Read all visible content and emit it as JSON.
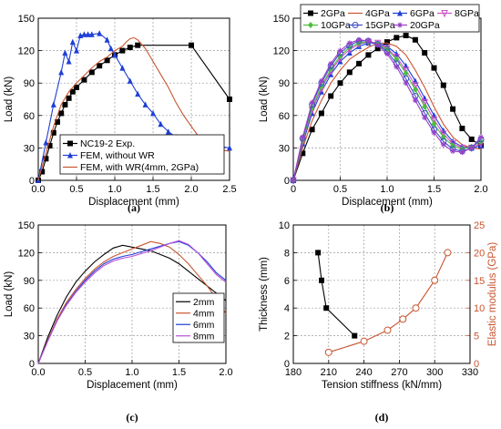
{
  "chart_data": [
    {
      "panel": "(a)",
      "type": "line",
      "xlabel": "Displacement (mm)",
      "ylabel": "Load (kN)",
      "xlim": [
        0,
        2.5
      ],
      "ylim": [
        0,
        150
      ],
      "xticks": [
        "0.0",
        "0.5",
        "1.0",
        "1.5",
        "2.0",
        "2.5"
      ],
      "yticks": [
        "0",
        "30",
        "60",
        "90",
        "120",
        "150"
      ],
      "grid": true,
      "legend_position": "bottom-right",
      "series": [
        {
          "name": "NC19-2 Exp.",
          "color": "#000000",
          "marker": "square",
          "x": [
            0,
            0.05,
            0.1,
            0.15,
            0.2,
            0.25,
            0.3,
            0.35,
            0.4,
            0.45,
            0.5,
            0.6,
            0.7,
            0.8,
            0.9,
            1.0,
            1.1,
            1.2,
            1.3,
            2.0,
            2.5
          ],
          "y": [
            0,
            8,
            20,
            32,
            44,
            54,
            62,
            70,
            76,
            82,
            86,
            93,
            100,
            106,
            111,
            116,
            120,
            123,
            125,
            125,
            75
          ]
        },
        {
          "name": "FEM, without WR",
          "color": "#1f3fd6",
          "marker": "triangle",
          "x": [
            0,
            0.1,
            0.2,
            0.3,
            0.35,
            0.4,
            0.45,
            0.5,
            0.55,
            0.6,
            0.65,
            0.7,
            0.8,
            0.9,
            0.95,
            1.0,
            1.1,
            1.2,
            1.3,
            1.4,
            1.5,
            1.6,
            1.7,
            1.8,
            1.9,
            2.0,
            2.1,
            2.2,
            2.3,
            2.4,
            2.5
          ],
          "y": [
            0,
            35,
            70,
            100,
            118,
            110,
            128,
            120,
            134,
            135,
            135,
            135,
            136,
            130,
            122,
            116,
            104,
            92,
            80,
            70,
            62,
            52,
            45,
            40,
            38,
            35,
            33,
            33,
            32,
            31,
            30
          ]
        },
        {
          "name": "FEM, with WR(4mm, 2GPa)",
          "color": "#c8552f",
          "marker": "none",
          "x": [
            0,
            0.1,
            0.2,
            0.3,
            0.4,
            0.5,
            0.6,
            0.7,
            0.8,
            0.9,
            1.0,
            1.1,
            1.15,
            1.2,
            1.25,
            1.3,
            1.4,
            1.5,
            1.6,
            1.7,
            1.8,
            1.9,
            2.0,
            2.1,
            2.2,
            2.3,
            2.4,
            2.5
          ],
          "y": [
            0,
            25,
            50,
            70,
            82,
            90,
            97,
            104,
            110,
            114,
            120,
            124,
            128,
            131,
            132,
            130,
            122,
            110,
            98,
            86,
            72,
            60,
            50,
            40,
            34,
            30,
            28,
            27
          ]
        }
      ]
    },
    {
      "panel": "(b)",
      "type": "line",
      "xlabel": "Displacement (mm)",
      "ylabel": "Load (kN)",
      "xlim": [
        0,
        2.0
      ],
      "ylim": [
        0,
        150
      ],
      "xticks": [
        "0",
        "0.5",
        "1.0",
        "1.5",
        "2.0"
      ],
      "yticks": [
        "0",
        "30",
        "60",
        "90",
        "120",
        "150"
      ],
      "grid": true,
      "legend_position": "top",
      "series": [
        {
          "name": "2GPa",
          "color": "#000000",
          "marker": "square",
          "x": [
            0,
            0.1,
            0.2,
            0.3,
            0.4,
            0.5,
            0.6,
            0.7,
            0.8,
            0.9,
            1.0,
            1.1,
            1.2,
            1.3,
            1.4,
            1.5,
            1.6,
            1.7,
            1.8,
            1.9,
            2.0
          ],
          "y": [
            0,
            25,
            47,
            62,
            78,
            90,
            100,
            108,
            116,
            122,
            128,
            132,
            134,
            130,
            118,
            104,
            88,
            66,
            48,
            38,
            32
          ]
        },
        {
          "name": "4GPa",
          "color": "#c8552f",
          "marker": "none",
          "x": [
            0,
            0.1,
            0.2,
            0.3,
            0.4,
            0.5,
            0.6,
            0.7,
            0.8,
            0.9,
            1.0,
            1.1,
            1.2,
            1.3,
            1.4,
            1.5,
            1.6,
            1.7,
            1.8,
            1.9,
            2.0
          ],
          "y": [
            0,
            30,
            55,
            74,
            90,
            102,
            112,
            118,
            123,
            127,
            127,
            124,
            116,
            102,
            86,
            68,
            52,
            40,
            33,
            30,
            29
          ]
        },
        {
          "name": "6GPa",
          "color": "#1f3fd6",
          "marker": "triangle",
          "x": [
            0,
            0.1,
            0.2,
            0.3,
            0.4,
            0.5,
            0.6,
            0.7,
            0.8,
            0.9,
            1.0,
            1.1,
            1.2,
            1.3,
            1.4,
            1.5,
            1.6,
            1.7,
            1.8,
            1.9,
            2.0
          ],
          "y": [
            0,
            34,
            62,
            82,
            98,
            110,
            118,
            124,
            127,
            127,
            124,
            117,
            106,
            92,
            76,
            60,
            46,
            36,
            31,
            30,
            32
          ]
        },
        {
          "name": "8GPa",
          "color": "#d050c8",
          "marker": "triangle-down",
          "x": [
            0,
            0.1,
            0.2,
            0.3,
            0.4,
            0.5,
            0.6,
            0.7,
            0.8,
            0.9,
            1.0,
            1.1,
            1.2,
            1.3,
            1.4,
            1.5,
            1.6,
            1.7,
            1.8,
            1.9,
            2.0
          ],
          "y": [
            0,
            36,
            65,
            85,
            101,
            113,
            121,
            126,
            128,
            127,
            122,
            114,
            102,
            88,
            72,
            56,
            43,
            34,
            30,
            30,
            34
          ]
        },
        {
          "name": "10GPa",
          "color": "#4bbf3a",
          "marker": "diamond",
          "x": [
            0,
            0.1,
            0.2,
            0.3,
            0.4,
            0.5,
            0.6,
            0.7,
            0.8,
            0.9,
            1.0,
            1.1,
            1.2,
            1.3,
            1.4,
            1.5,
            1.6,
            1.7,
            1.8,
            1.9,
            2.0
          ],
          "y": [
            0,
            37,
            67,
            87,
            103,
            115,
            123,
            127,
            128,
            126,
            121,
            112,
            99,
            84,
            68,
            52,
            40,
            32,
            29,
            31,
            36
          ]
        },
        {
          "name": "15GPa",
          "color": "#3e50c8",
          "marker": "circle",
          "x": [
            0,
            0.1,
            0.2,
            0.3,
            0.4,
            0.5,
            0.6,
            0.7,
            0.8,
            0.9,
            1.0,
            1.1,
            1.2,
            1.3,
            1.4,
            1.5,
            1.6,
            1.7,
            1.8,
            1.9,
            2.0
          ],
          "y": [
            0,
            39,
            70,
            90,
            106,
            118,
            125,
            129,
            129,
            126,
            119,
            108,
            94,
            78,
            62,
            47,
            36,
            29,
            27,
            30,
            38
          ]
        },
        {
          "name": "20GPa",
          "color": "#9a3ec8",
          "marker": "star",
          "x": [
            0,
            0.1,
            0.2,
            0.3,
            0.4,
            0.5,
            0.6,
            0.7,
            0.8,
            0.9,
            1.0,
            1.1,
            1.2,
            1.3,
            1.4,
            1.5,
            1.6,
            1.7,
            1.8,
            1.9,
            2.0
          ],
          "y": [
            0,
            40,
            72,
            92,
            108,
            120,
            127,
            130,
            129,
            125,
            117,
            105,
            90,
            74,
            58,
            44,
            33,
            27,
            26,
            30,
            40
          ]
        }
      ]
    },
    {
      "panel": "(c)",
      "type": "line",
      "xlabel": "Displacement (mm)",
      "ylabel": "Load (kN)",
      "xlim": [
        0,
        2.0
      ],
      "ylim": [
        0,
        150
      ],
      "xticks": [
        "0.0",
        "0.5",
        "1.0",
        "1.5",
        "2.0"
      ],
      "yticks": [
        "0",
        "30",
        "60",
        "90",
        "120",
        "150"
      ],
      "grid": true,
      "legend_position": "bottom-right",
      "series": [
        {
          "name": "2mm",
          "color": "#000000",
          "marker": "none",
          "x": [
            0,
            0.1,
            0.2,
            0.3,
            0.4,
            0.5,
            0.6,
            0.7,
            0.8,
            0.9,
            1.0,
            1.1,
            1.2,
            1.3,
            1.4,
            1.5,
            1.6,
            1.7,
            1.8,
            1.9,
            2.0
          ],
          "y": [
            0,
            28,
            52,
            72,
            88,
            100,
            110,
            118,
            125,
            128,
            126,
            124,
            122,
            118,
            114,
            108,
            100,
            92,
            84,
            76,
            68
          ]
        },
        {
          "name": "4mm",
          "color": "#c8552f",
          "marker": "none",
          "x": [
            0,
            0.1,
            0.2,
            0.3,
            0.4,
            0.5,
            0.6,
            0.7,
            0.8,
            0.9,
            1.0,
            1.1,
            1.2,
            1.3,
            1.4,
            1.5,
            1.6,
            1.7,
            1.8,
            1.9,
            2.0
          ],
          "y": [
            0,
            25,
            48,
            66,
            80,
            92,
            102,
            110,
            116,
            120,
            124,
            128,
            132,
            130,
            126,
            118,
            108,
            96,
            84,
            70,
            54
          ]
        },
        {
          "name": "6mm",
          "color": "#1f3fd6",
          "marker": "none",
          "x": [
            0,
            0.1,
            0.2,
            0.3,
            0.4,
            0.5,
            0.6,
            0.7,
            0.8,
            0.9,
            1.0,
            1.1,
            1.2,
            1.3,
            1.4,
            1.5,
            1.6,
            1.7,
            1.8,
            1.9,
            2.0
          ],
          "y": [
            0,
            24,
            46,
            64,
            78,
            90,
            100,
            108,
            113,
            116,
            118,
            121,
            124,
            127,
            130,
            132,
            128,
            120,
            110,
            98,
            90
          ]
        },
        {
          "name": "8mm",
          "color": "#b84fd8",
          "marker": "none",
          "x": [
            0,
            0.1,
            0.2,
            0.3,
            0.4,
            0.5,
            0.6,
            0.7,
            0.8,
            0.9,
            1.0,
            1.1,
            1.2,
            1.3,
            1.4,
            1.5,
            1.6,
            1.7,
            1.8,
            1.9,
            2.0
          ],
          "y": [
            0,
            24,
            46,
            63,
            77,
            88,
            98,
            106,
            111,
            114,
            116,
            119,
            122,
            126,
            130,
            133,
            129,
            120,
            108,
            96,
            88
          ]
        }
      ]
    },
    {
      "panel": "(d)",
      "type": "line",
      "xlabel": "Tension stiffness (kN/mm)",
      "ylabel": "Thickness (mm)",
      "ylabel_right": "Elastic modulus (GPa)",
      "xlim": [
        180,
        330
      ],
      "ylim": [
        0,
        10
      ],
      "ylim_right": [
        0,
        25
      ],
      "xticks": [
        "180",
        "210",
        "240",
        "270",
        "300",
        "330"
      ],
      "yticks": [
        "0",
        "2",
        "4",
        "6",
        "8",
        "10"
      ],
      "yticks_right": [
        "0",
        "5",
        "10",
        "15",
        "20",
        "25"
      ],
      "grid": true,
      "series": [
        {
          "name": "Thickness",
          "axis": "left",
          "color": "#000000",
          "marker": "square",
          "x": [
            201,
            204,
            208,
            232
          ],
          "y": [
            8,
            6,
            4,
            2
          ]
        },
        {
          "name": "Elastic modulus",
          "axis": "right",
          "color": "#c8552f",
          "marker": "open-circle",
          "x": [
            210,
            240,
            260,
            273,
            284,
            300,
            311
          ],
          "y": [
            2,
            4,
            6,
            8,
            10,
            15,
            20
          ]
        }
      ]
    }
  ]
}
